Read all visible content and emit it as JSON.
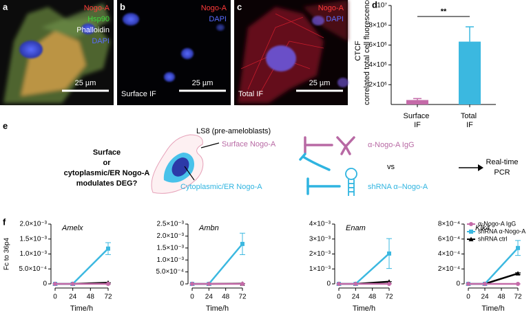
{
  "images": [
    {
      "label": "a",
      "channels": [
        "Nogo-A",
        "Hsp90",
        "Phalloidin",
        "DAPI"
      ],
      "scale": "25 µm"
    },
    {
      "label": "b",
      "channels": [
        "Nogo-A",
        "DAPI"
      ],
      "caption": "Surface IF",
      "scale": "25 µm"
    },
    {
      "label": "c",
      "channels": [
        "Nogo-A",
        "DAPI"
      ],
      "caption": "Total IF",
      "scale": "25 µm"
    }
  ],
  "diagram": {
    "label": "e",
    "question": [
      "Surface",
      "or",
      "cytoplasmic/ER Nogo-A",
      "modulates DEG?"
    ],
    "cell": "LS8 (pre-ameloblasts)",
    "surface": "Surface Nogo-A",
    "cytoplasmic": "Cytoplasmic/ER Nogo-A",
    "antibody": "α-Nogo-A IgG",
    "vs": "vs",
    "shrna": "shRNA α–Nogo-A",
    "readout": [
      "Real-time",
      "PCR"
    ]
  },
  "chart_data": [
    {
      "type": "bar",
      "panel_label": "d",
      "ylabel": [
        "CTCF",
        "correlated total cell fluorescence"
      ],
      "categories": [
        "Surface IF",
        "Total IF"
      ],
      "values": [
        450000,
        6350000
      ],
      "errors": [
        150000,
        1500000
      ],
      "colors": [
        "#c46aa8",
        "#3bb8e0"
      ],
      "significance": "**",
      "ylim": [
        0,
        10000000
      ],
      "yticks": [
        {
          "value": 2000000,
          "label": "2×10⁶"
        },
        {
          "value": 4000000,
          "label": "4×10⁶"
        },
        {
          "value": 6000000,
          "label": "6×10⁶"
        },
        {
          "value": 8000000,
          "label": "8×10⁶"
        },
        {
          "value": 10000000,
          "label": "10⁷"
        }
      ]
    },
    {
      "type": "line",
      "panel_label": "f",
      "title": "Amelx",
      "ylabel": "Fc to 36p4",
      "xlabel": "Time/h",
      "x": [
        0,
        24,
        72
      ],
      "xlim": [
        0,
        72
      ],
      "xticks": [
        0,
        24,
        48,
        72
      ],
      "ylim": [
        0,
        0.002
      ],
      "yticks": [
        0,
        {
          "value": 0.0005,
          "label": "5.0×10⁻⁴"
        },
        {
          "value": 0.001,
          "label": "1.0×10⁻³"
        },
        {
          "value": 0.0015,
          "label": "1.5×10⁻³"
        },
        {
          "value": 0.002,
          "label": "2.0×10⁻³"
        }
      ],
      "series": [
        {
          "color": "#c46aa8",
          "marker": "circle",
          "values": [
            0,
            0,
            0
          ],
          "errors": [
            0,
            0,
            0
          ]
        },
        {
          "color": "#3bb8e0",
          "marker": "square",
          "values": [
            0,
            0,
            0.00118
          ],
          "errors": [
            0,
            0,
            0.0002
          ]
        },
        {
          "color": "#000000",
          "marker": "triangle",
          "values": [
            0,
            0,
            4e-05
          ],
          "errors": [
            0,
            0,
            0
          ]
        }
      ]
    },
    {
      "type": "line",
      "title": "Ambn",
      "xlabel": "Time/h",
      "x": [
        0,
        24,
        72
      ],
      "xlim": [
        0,
        72
      ],
      "xticks": [
        0,
        24,
        48,
        72
      ],
      "ylim": [
        0,
        0.0025
      ],
      "yticks": [
        0,
        {
          "value": 0.0005,
          "label": "5.0×10⁻⁴"
        },
        {
          "value": 0.001,
          "label": "1.0×10⁻³"
        },
        {
          "value": 0.0015,
          "label": "1.5×10⁻³"
        },
        {
          "value": 0.002,
          "label": "2.0×10⁻³"
        },
        {
          "value": 0.0025,
          "label": "2.5×10⁻³"
        }
      ],
      "series": [
        {
          "color": "#c46aa8",
          "marker": "circle",
          "values": [
            0,
            0,
            0
          ],
          "errors": [
            0,
            0,
            0
          ]
        },
        {
          "color": "#3bb8e0",
          "marker": "square",
          "values": [
            0,
            0,
            0.00167
          ],
          "errors": [
            0,
            0,
            0.00045
          ]
        },
        {
          "color": "#000000",
          "marker": "triangle",
          "values": [
            0,
            0,
            1e-05
          ],
          "errors": [
            0,
            0,
            0
          ]
        }
      ]
    },
    {
      "type": "line",
      "title": "Enam",
      "xlabel": "Time/h",
      "x": [
        0,
        24,
        72
      ],
      "xlim": [
        0,
        72
      ],
      "xticks": [
        0,
        24,
        48,
        72
      ],
      "ylim": [
        0,
        0.004
      ],
      "yticks": [
        0,
        {
          "value": 0.001,
          "label": "1×10⁻³"
        },
        {
          "value": 0.002,
          "label": "2×10⁻³"
        },
        {
          "value": 0.003,
          "label": "3×10⁻³"
        },
        {
          "value": 0.004,
          "label": "4×10⁻³"
        }
      ],
      "series": [
        {
          "color": "#c46aa8",
          "marker": "circle",
          "values": [
            0,
            0,
            0
          ],
          "errors": [
            0,
            0,
            0
          ]
        },
        {
          "color": "#3bb8e0",
          "marker": "square",
          "values": [
            0,
            0,
            0.00203
          ],
          "errors": [
            0,
            0,
            0.001
          ]
        },
        {
          "color": "#000000",
          "marker": "triangle",
          "values": [
            0,
            0,
            0.00015
          ],
          "errors": [
            0,
            0,
            0
          ]
        }
      ]
    },
    {
      "type": "line",
      "title": "Klk4",
      "xlabel": "Time/h",
      "legend": "upper right",
      "x": [
        0,
        24,
        72
      ],
      "xlim": [
        0,
        72
      ],
      "xticks": [
        0,
        24,
        48,
        72
      ],
      "ylim": [
        0,
        0.0008
      ],
      "yticks": [
        0,
        {
          "value": 0.0002,
          "label": "2×10⁻⁴"
        },
        {
          "value": 0.0004,
          "label": "4×10⁻⁴"
        },
        {
          "value": 0.0006,
          "label": "6×10⁻⁴"
        },
        {
          "value": 0.0008,
          "label": "8×10⁻⁴"
        }
      ],
      "series": [
        {
          "name": "α-Nogo-A IgG",
          "color": "#c46aa8",
          "marker": "circle",
          "values": [
            0,
            0,
            0
          ],
          "errors": [
            0,
            0,
            0
          ]
        },
        {
          "name": "shRNA α-Nogo-A",
          "color": "#3bb8e0",
          "marker": "square",
          "values": [
            0,
            0,
            0.00048
          ],
          "errors": [
            0,
            0,
            0.0001
          ]
        },
        {
          "name": "shRNA ctrl",
          "color": "#000000",
          "marker": "triangle",
          "values": [
            0,
            0,
            0.00014
          ],
          "errors": [
            0,
            0,
            1e-05
          ]
        }
      ]
    }
  ]
}
